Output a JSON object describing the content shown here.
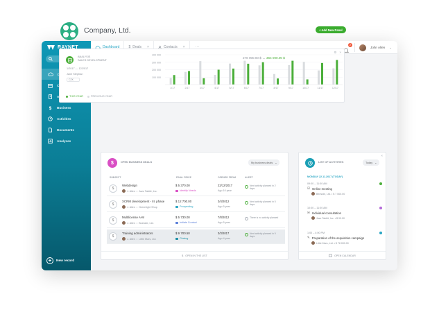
{
  "brand": "RAYNET",
  "colors": {
    "accent": "#2aa6c4",
    "green": "#4caf3b",
    "grey_bar": "#d9dcdf",
    "deals_icon": "#d94fc4",
    "acts_icon": "#1b9fb5"
  },
  "sidebar": {
    "items": [
      {
        "label": "Dashboard",
        "icon": "cloud-icon"
      },
      {
        "label": "Calendar",
        "icon": "calendar-icon"
      },
      {
        "label": "Accounts",
        "icon": "building-icon"
      },
      {
        "label": "Business",
        "icon": "dollar-icon"
      },
      {
        "label": "Activities",
        "icon": "clock-icon"
      },
      {
        "label": "Documents",
        "icon": "document-icon"
      },
      {
        "label": "Analyses",
        "icon": "analyses-icon"
      }
    ],
    "new_record": "New record"
  },
  "tabs": [
    {
      "label": "Dashboard"
    },
    {
      "label": "Deals",
      "close": "×"
    },
    {
      "label": "Contacts",
      "close": "×"
    }
  ],
  "tabs_more": "···",
  "notifications": {
    "count": "2"
  },
  "user": {
    "name": "John Allen"
  },
  "company": {
    "name": "Company, Ltd."
  },
  "add_panel": "+ Add New Panel",
  "analytics": {
    "title_line1": "ANALYSIS",
    "title_line2": "SALES DEVELOPMENT",
    "date_range": "1/2017 — 12/2017",
    "owner": "Jane Stephan",
    "chip": "CZK",
    "legend_this": "THIS YEAR",
    "legend_prev": "PREVIOUS YEAR",
    "sum_prev": "278 000.00 $",
    "sum_sep": "↔",
    "sum_this": "364 000.00 $"
  },
  "chart_data": {
    "type": "bar",
    "categories": [
      "1/17",
      "2/17",
      "3/17",
      "4/17",
      "5/17",
      "6/17",
      "7/17",
      "8/17",
      "9/17",
      "10/17",
      "11/17",
      "12/17"
    ],
    "ylim": [
      0,
      400000
    ],
    "yticks": [
      "400 000",
      "300 000",
      "200 000",
      "100 000"
    ],
    "series": [
      {
        "name": "PREVIOUS YEAR",
        "values": [
          88000,
          170000,
          315000,
          130000,
          282000,
          320000,
          258000,
          142000,
          262000,
          305000,
          190000,
          218000
        ]
      },
      {
        "name": "THIS YEAR",
        "values": [
          128000,
          182000,
          85000,
          200000,
          215000,
          280000,
          300000,
          82000,
          320000,
          70000,
          290000,
          330000
        ]
      }
    ]
  },
  "deals": {
    "title": "OPEN BUSINESS DEALS",
    "filter": "My business deals",
    "columns": {
      "subject": "SUBJECT",
      "price": "FINAL PRICE",
      "opened": "OPENED FROM",
      "alert": "ALERT"
    },
    "rows": [
      {
        "subject": "Webdesign",
        "owner": "J. Allen",
        "company": "Jazz Tabbit, Inc.",
        "price": "$ 5 370.00",
        "stage": "Identify Needs",
        "stage_color": "#d94fc4",
        "opened": "22/12/2017",
        "ago": "Ago 10 year",
        "alert": "Next activity planned in 2 days"
      },
      {
        "subject": "XCRM development - III. phase",
        "owner": "J. Allen",
        "company": "Greenlight Shop",
        "price": "$ 12 700.00",
        "stage": "Prospecting",
        "stage_color": "#2aa6c4",
        "opened": "3/4/2012",
        "ago": "Ago 5 year",
        "alert": "Next activity planned in 5 days"
      },
      {
        "subject": "Multilicense A-M",
        "owner": "J. Allen",
        "company": "Boeside, Ltd.",
        "price": "$ 5 730.00",
        "stage": "Initiate Contact",
        "stage_color": "#5b7fd9",
        "opened": "7/8/2012",
        "ago": "Ago 5 year",
        "alert": "There is no activity planned"
      },
      {
        "subject": "Training administrators",
        "owner": "J. Allen",
        "company": "Little Mars, Ltd.",
        "price": "$ 9 700.50",
        "stage": "Closing",
        "stage_color": "#1b8fa5",
        "opened": "3/3/2017",
        "ago": "Ago 4 year",
        "alert": "Next activity planned in 9 days"
      }
    ],
    "footer": "OPEN IN THE LIST"
  },
  "activities": {
    "title": "LIST OF ACTIVITIES",
    "filter": "Today",
    "day": "MONDAY 22.11.2017 (TODAY)",
    "items": [
      {
        "time": "09:00 – 11:00 AM",
        "title": "Online meeting",
        "meta": "Beeside, Ltd. • $ 7 500.00",
        "status_color": "#4caf3b"
      },
      {
        "time": "10:00 – 11:00 AM",
        "title": "Individual consultation",
        "meta": "Jazz Tabbit, Inc. • $ 90.00",
        "status_color": "#b46bd9"
      },
      {
        "time": "1:00 – 4:00 PM",
        "title": "Preparation of the acquisition campaign",
        "meta": "Little Mars, Ltd. • $ 78 000.00",
        "status_color": "#2aa6c4"
      }
    ],
    "footer": "OPEN CALENDAR"
  }
}
